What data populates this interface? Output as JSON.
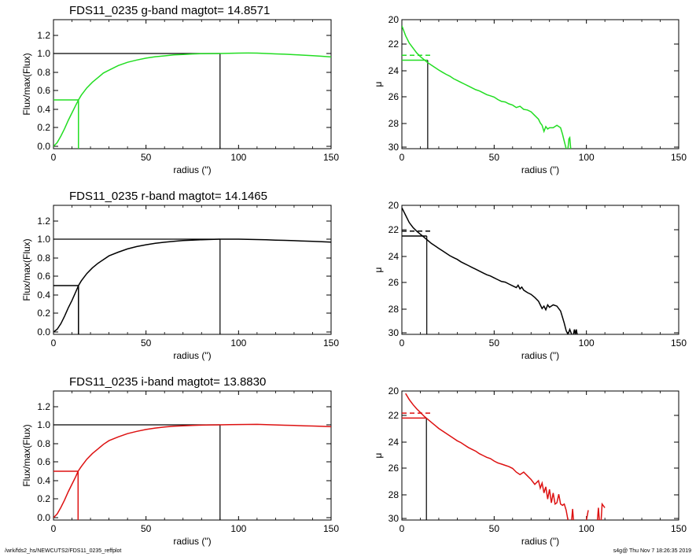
{
  "chart_data": [
    {
      "type": "line",
      "panel": "g-cumulative",
      "title": "FDS11_0235 g-band  magtot=      14.8571",
      "xlabel": "radius (\")",
      "ylabel": "Flux/max(Flux)",
      "xlim": [
        0,
        150
      ],
      "ylim": [
        -0.03,
        1.22
      ],
      "xticks": [
        0,
        50,
        100,
        150
      ],
      "xtick_labels": [
        "0",
        "50",
        "100",
        "150"
      ],
      "yticks": [
        0,
        0.2,
        0.4,
        0.6,
        0.8,
        1.0,
        1.2
      ],
      "ytick_labels": [
        "0.0",
        "0.2",
        "0.4",
        "0.6",
        "0.8",
        "1.0",
        "1.2"
      ],
      "color": "#22dd22",
      "marker_color": "#000000",
      "series": [
        {
          "x": [
            0,
            2,
            4,
            6,
            8,
            10,
            12,
            13.5,
            15,
            18,
            21,
            24,
            27,
            30,
            35,
            40,
            45,
            50,
            55,
            60,
            65,
            70,
            75,
            80,
            85,
            90,
            95,
            100,
            105,
            110,
            115,
            120,
            125,
            130,
            135,
            140,
            145,
            150
          ],
          "y": [
            0,
            0.04,
            0.11,
            0.19,
            0.28,
            0.36,
            0.44,
            0.5,
            0.55,
            0.63,
            0.69,
            0.74,
            0.79,
            0.82,
            0.87,
            0.905,
            0.93,
            0.95,
            0.965,
            0.975,
            0.985,
            0.99,
            0.995,
            0.998,
            0.999,
            1.0,
            1.002,
            1.004,
            1.005,
            1.004,
            1.0,
            0.996,
            0.992,
            0.987,
            0.982,
            0.976,
            0.97,
            0.963
          ]
        }
      ],
      "half_radius": 13.5,
      "total_radius": 90,
      "half_level": 0.5,
      "total_level": 1.0
    },
    {
      "type": "line",
      "panel": "g-profile",
      "xlabel": "radius (\")",
      "ylabel": "μ",
      "xlim": [
        0,
        150
      ],
      "ylim": [
        30.2,
        19.7
      ],
      "xticks": [
        0,
        50,
        100,
        150
      ],
      "xtick_labels": [
        "0",
        "50",
        "100",
        "150"
      ],
      "yticks": [
        20,
        22,
        24,
        26,
        28,
        30
      ],
      "ytick_labels": [
        "20",
        "22",
        "24",
        "26",
        "28",
        "30"
      ],
      "color": "#22dd22",
      "marker_color": "#000000",
      "segments": [
        {
          "x": [
            0,
            2,
            4,
            6,
            8,
            10,
            12,
            14,
            16,
            18,
            20,
            22,
            24,
            26,
            28,
            30,
            32,
            34,
            36,
            38,
            40,
            42,
            44,
            46,
            48,
            50,
            52,
            54,
            56,
            58,
            60,
            62,
            64,
            66,
            68,
            70,
            72,
            74,
            75,
            76,
            77,
            78,
            79,
            80,
            82,
            84,
            86,
            87,
            88,
            89
          ],
          "y": [
            20.2,
            21.0,
            21.6,
            22.0,
            22.4,
            22.7,
            22.95,
            23.2,
            23.4,
            23.6,
            23.8,
            23.98,
            24.15,
            24.3,
            24.5,
            24.65,
            24.8,
            24.95,
            25.1,
            25.25,
            25.4,
            25.5,
            25.65,
            25.8,
            25.9,
            26.0,
            26.2,
            26.35,
            26.4,
            26.55,
            26.65,
            26.85,
            26.75,
            27.0,
            27.05,
            27.2,
            27.5,
            27.8,
            28.1,
            28.3,
            28.8,
            28.4,
            28.6,
            28.5,
            28.5,
            28.3,
            28.5,
            29.0,
            29.6,
            30.2
          ]
        },
        {
          "x": [
            90,
            90.5,
            91,
            91.5
          ],
          "y": [
            30.2,
            29.4,
            29.3,
            30.2
          ]
        }
      ],
      "reff": 14,
      "mu_reff": 23.0,
      "mu_mean": 22.6
    },
    {
      "type": "line",
      "panel": "r-cumulative",
      "title": "FDS11_0235 r-band  magtot=      14.1465",
      "xlabel": "radius (\")",
      "ylabel": "Flux/max(Flux)",
      "xlim": [
        0,
        150
      ],
      "ylim": [
        -0.03,
        1.22
      ],
      "xticks": [
        0,
        50,
        100,
        150
      ],
      "xtick_labels": [
        "0",
        "50",
        "100",
        "150"
      ],
      "yticks": [
        0,
        0.2,
        0.4,
        0.6,
        0.8,
        1.0,
        1.2
      ],
      "ytick_labels": [
        "0.0",
        "0.2",
        "0.4",
        "0.6",
        "0.8",
        "1.0",
        "1.2"
      ],
      "color": "#000000",
      "marker_color": "#000000",
      "series": [
        {
          "x": [
            0,
            2,
            4,
            6,
            8,
            10,
            12,
            13.5,
            15,
            18,
            21,
            24,
            27,
            30,
            35,
            40,
            45,
            50,
            55,
            60,
            65,
            70,
            75,
            80,
            85,
            90,
            95,
            100,
            105,
            110,
            115,
            120,
            125,
            130,
            135,
            140,
            145,
            150
          ],
          "y": [
            0,
            0.03,
            0.09,
            0.17,
            0.26,
            0.34,
            0.43,
            0.5,
            0.55,
            0.63,
            0.69,
            0.74,
            0.78,
            0.82,
            0.86,
            0.895,
            0.92,
            0.94,
            0.955,
            0.967,
            0.977,
            0.985,
            0.99,
            0.994,
            0.997,
            1.0,
            1.0,
            1.0,
            0.998,
            0.996,
            0.993,
            0.99,
            0.987,
            0.984,
            0.98,
            0.976,
            0.972,
            0.968
          ]
        }
      ],
      "half_radius": 13.5,
      "total_radius": 90,
      "half_level": 0.5,
      "total_level": 1.0
    },
    {
      "type": "line",
      "panel": "r-profile",
      "xlabel": "radius (\")",
      "ylabel": "μ",
      "xlim": [
        0,
        150
      ],
      "ylim": [
        30.2,
        19.7
      ],
      "xticks": [
        0,
        50,
        100,
        150
      ],
      "xtick_labels": [
        "0",
        "50",
        "100",
        "150"
      ],
      "yticks": [
        20,
        22,
        24,
        26,
        28,
        30
      ],
      "ytick_labels": [
        "20",
        "22",
        "24",
        "26",
        "28",
        "30"
      ],
      "color": "#000000",
      "marker_color": "#000000",
      "segments": [
        {
          "x": [
            0,
            2,
            4,
            6,
            8,
            10,
            12,
            14,
            16,
            18,
            20,
            22,
            24,
            26,
            28,
            30,
            32,
            34,
            36,
            38,
            40,
            42,
            44,
            46,
            48,
            50,
            52,
            54,
            56,
            58,
            60,
            62,
            63,
            64,
            65,
            66,
            68,
            70,
            72,
            74,
            75,
            76,
            77,
            78,
            79,
            80,
            82,
            84,
            86,
            87,
            88,
            89,
            90,
            91,
            92
          ],
          "y": [
            19.9,
            20.5,
            21.1,
            21.5,
            21.8,
            22.05,
            22.3,
            22.55,
            22.8,
            23.0,
            23.2,
            23.4,
            23.6,
            23.8,
            23.95,
            24.1,
            24.3,
            24.45,
            24.6,
            24.75,
            24.9,
            25.05,
            25.2,
            25.35,
            25.45,
            25.6,
            25.75,
            25.9,
            25.95,
            26.1,
            26.25,
            26.4,
            26.2,
            26.5,
            26.35,
            26.6,
            26.8,
            26.95,
            27.2,
            27.5,
            27.8,
            28.1,
            27.9,
            28.2,
            27.8,
            28.0,
            27.8,
            27.9,
            28.3,
            28.8,
            29.3,
            29.9,
            30.2,
            29.8,
            30.2
          ]
        },
        {
          "x": [
            93,
            93.5,
            94,
            94.5,
            95
          ],
          "y": [
            30.2,
            29.8,
            30.2,
            29.8,
            30.2
          ]
        }
      ],
      "reff": 13.5,
      "mu_reff": 22.2,
      "mu_mean": 21.8
    },
    {
      "type": "line",
      "panel": "i-cumulative",
      "title": "FDS11_0235 i-band  magtot=      13.8830",
      "xlabel": "radius (\")",
      "ylabel": "Flux/max(Flux)",
      "xlim": [
        0,
        150
      ],
      "ylim": [
        -0.03,
        1.22
      ],
      "xticks": [
        0,
        50,
        100,
        150
      ],
      "xtick_labels": [
        "0",
        "50",
        "100",
        "150"
      ],
      "yticks": [
        0,
        0.2,
        0.4,
        0.6,
        0.8,
        1.0,
        1.2
      ],
      "ytick_labels": [
        "0.0",
        "0.2",
        "0.4",
        "0.6",
        "0.8",
        "1.0",
        "1.2"
      ],
      "color": "#dd1111",
      "marker_color": "#000000",
      "series": [
        {
          "x": [
            0,
            2,
            4,
            6,
            8,
            10,
            12,
            13.3,
            15,
            18,
            21,
            24,
            27,
            30,
            35,
            40,
            45,
            50,
            55,
            60,
            65,
            70,
            75,
            80,
            85,
            90,
            95,
            100,
            105,
            110,
            115,
            120,
            125,
            130,
            135,
            140,
            145,
            150
          ],
          "y": [
            0,
            0.04,
            0.11,
            0.19,
            0.28,
            0.36,
            0.44,
            0.5,
            0.55,
            0.63,
            0.69,
            0.74,
            0.79,
            0.83,
            0.87,
            0.905,
            0.93,
            0.95,
            0.965,
            0.976,
            0.985,
            0.99,
            0.994,
            0.997,
            0.999,
            1.0,
            1.002,
            1.003,
            1.004,
            1.005,
            1.002,
            0.999,
            0.996,
            0.993,
            0.99,
            0.987,
            0.984,
            0.98
          ]
        }
      ],
      "half_radius": 13.3,
      "total_radius": 90,
      "half_level": 0.5,
      "total_level": 1.0
    },
    {
      "type": "line",
      "panel": "i-profile",
      "xlabel": "radius (\")",
      "ylabel": "μ",
      "xlim": [
        0,
        150
      ],
      "ylim": [
        30.2,
        19.7
      ],
      "xticks": [
        0,
        50,
        100,
        150
      ],
      "xtick_labels": [
        "0",
        "50",
        "100",
        "150"
      ],
      "yticks": [
        20,
        22,
        24,
        26,
        28,
        30
      ],
      "ytick_labels": [
        "20",
        "22",
        "24",
        "26",
        "28",
        "30"
      ],
      "color": "#dd1111",
      "marker_color": "#000000",
      "segments": [
        {
          "x": [
            2,
            4,
            6,
            8,
            10,
            12,
            14,
            16,
            18,
            20,
            22,
            24,
            26,
            28,
            30,
            32,
            34,
            36,
            38,
            40,
            42,
            44,
            46,
            48,
            50,
            52,
            54,
            56,
            58,
            60,
            62,
            64,
            66,
            68,
            70,
            72,
            74,
            75,
            76,
            77,
            78,
            79,
            80,
            81,
            82,
            83,
            84,
            85,
            86,
            87,
            88,
            89,
            90
          ],
          "y": [
            19.9,
            20.4,
            20.8,
            21.15,
            21.45,
            21.75,
            22.0,
            22.25,
            22.5,
            22.75,
            22.95,
            23.15,
            23.35,
            23.55,
            23.75,
            23.9,
            24.1,
            24.3,
            24.45,
            24.6,
            24.8,
            24.95,
            25.1,
            25.2,
            25.4,
            25.55,
            25.65,
            25.75,
            25.85,
            26.0,
            26.3,
            26.5,
            26.3,
            26.6,
            26.9,
            27.3,
            27.0,
            27.6,
            27.2,
            28.0,
            27.5,
            28.5,
            27.7,
            28.8,
            28.0,
            28.9,
            28.8,
            28.1,
            28.9,
            29.0,
            28.9,
            29.4,
            30.2
          ]
        },
        {
          "x": [
            92,
            92.5,
            93
          ],
          "y": [
            30.2,
            29.3,
            30.2
          ]
        },
        {
          "x": [
            100,
            101
          ],
          "y": [
            30.2,
            29.4
          ]
        },
        {
          "x": [
            106,
            106.5,
            107
          ],
          "y": [
            30.2,
            29.2,
            30.2
          ]
        },
        {
          "x": [
            108,
            108.5,
            109,
            110
          ],
          "y": [
            30.2,
            28.9,
            29.0,
            29.2
          ]
        }
      ],
      "reff": 13.3,
      "mu_reff": 21.9,
      "mu_mean": 21.5
    }
  ],
  "footer": {
    "left": "/wrk/fds2_hs/NEWCUTS2/FDS11_0235_reffplot",
    "right": "s4g@  Thu Nov  7 18:26:35 2019"
  }
}
